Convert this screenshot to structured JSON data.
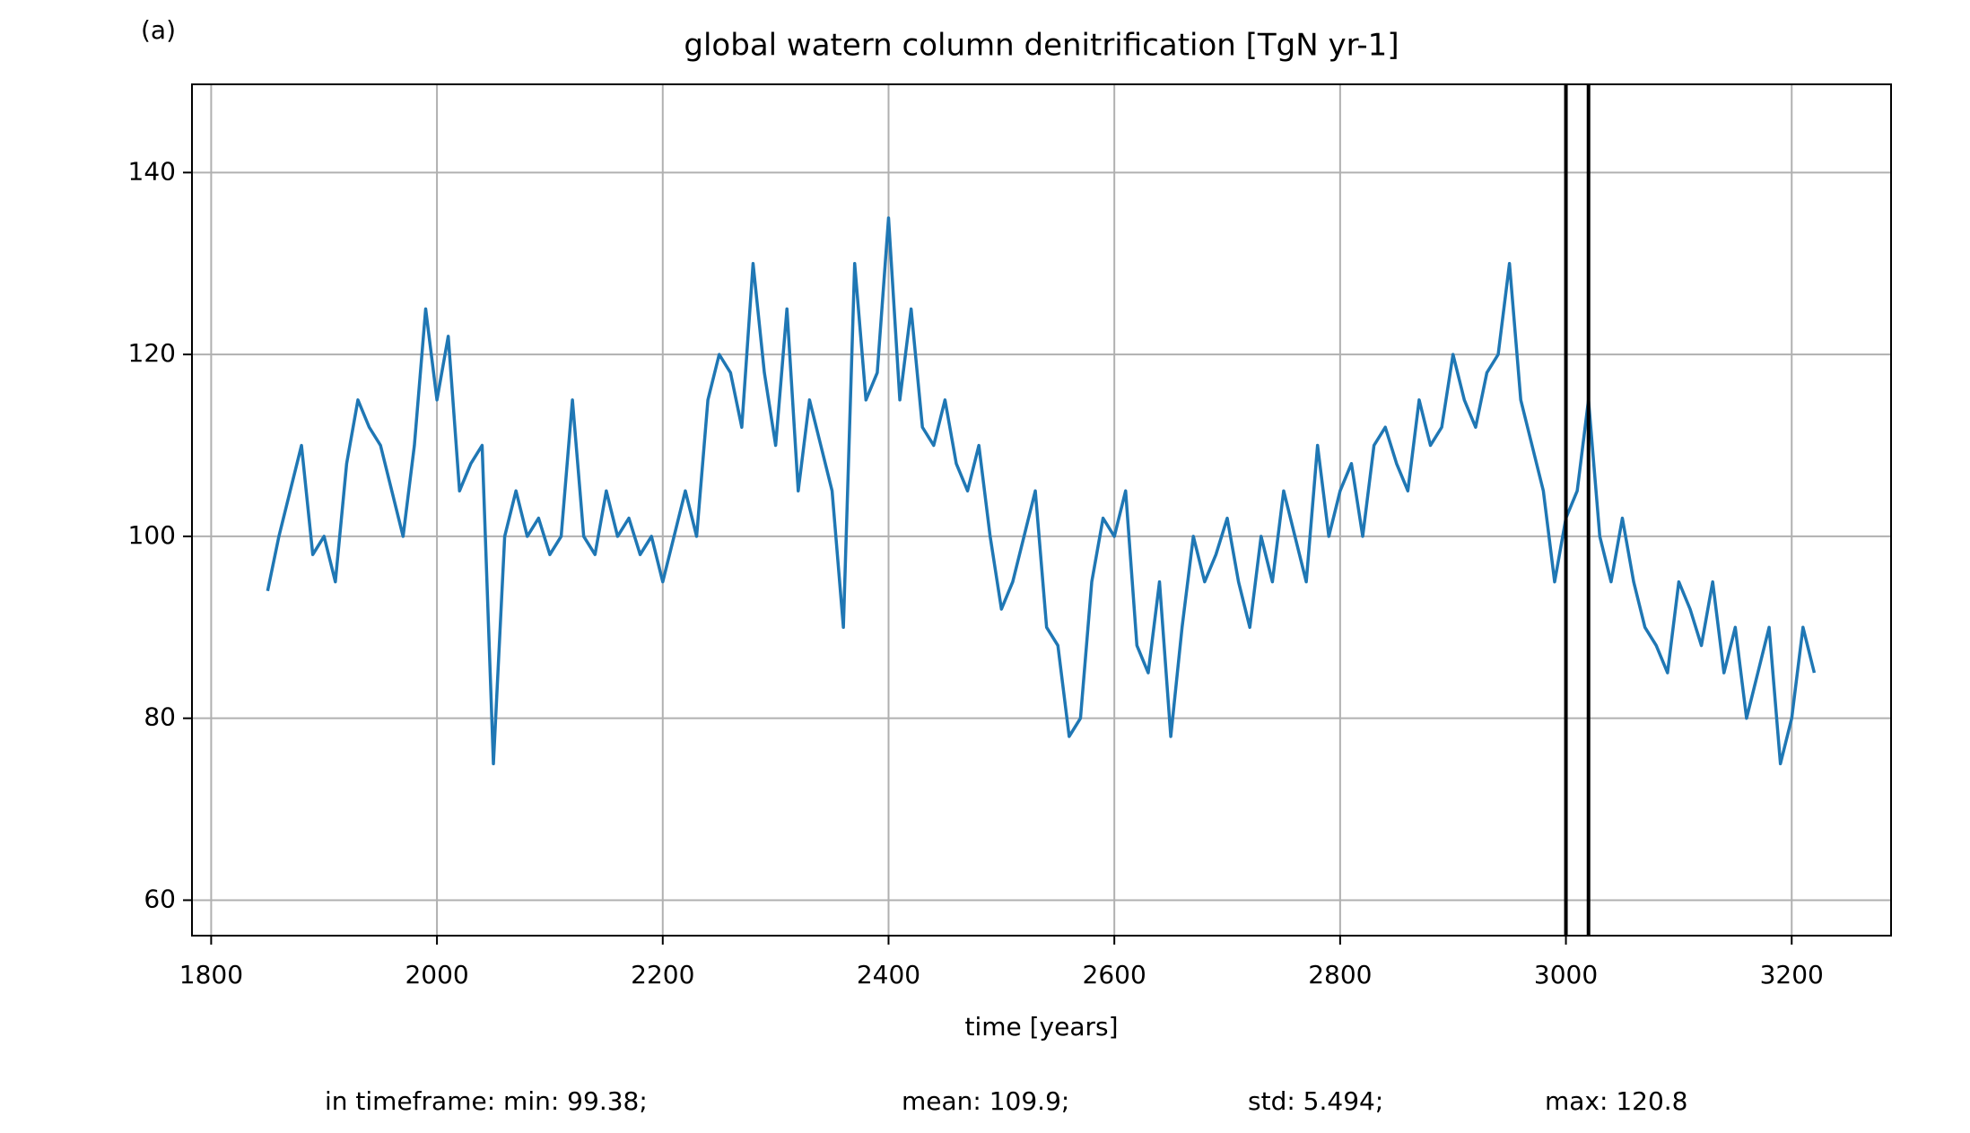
{
  "chart_data": {
    "type": "line",
    "title": "global watern column denitrification [TgN yr-1]",
    "panel_label": "(a)",
    "xlabel": "time [years]",
    "footer": [
      "in timeframe: min: 99.38;",
      "mean: 109.9;",
      "std: 5.494;",
      "max: 120.8"
    ],
    "x": [
      1850,
      1860,
      1870,
      1880,
      1890,
      1900,
      1910,
      1920,
      1930,
      1940,
      1950,
      1960,
      1970,
      1980,
      1990,
      2000,
      2010,
      2020,
      2030,
      2040,
      2050,
      2060,
      2070,
      2080,
      2090,
      2100,
      2110,
      2120,
      2130,
      2140,
      2150,
      2160,
      2170,
      2180,
      2190,
      2200,
      2210,
      2220,
      2230,
      2240,
      2250,
      2260,
      2270,
      2280,
      2290,
      2300,
      2310,
      2320,
      2330,
      2340,
      2350,
      2360,
      2370,
      2380,
      2390,
      2400,
      2410,
      2420,
      2430,
      2440,
      2450,
      2460,
      2470,
      2480,
      2490,
      2500,
      2510,
      2520,
      2530,
      2540,
      2550,
      2560,
      2570,
      2580,
      2590,
      2600,
      2610,
      2620,
      2630,
      2640,
      2650,
      2660,
      2670,
      2680,
      2690,
      2700,
      2710,
      2720,
      2730,
      2740,
      2750,
      2760,
      2770,
      2780,
      2790,
      2800,
      2810,
      2820,
      2830,
      2840,
      2850,
      2860,
      2870,
      2880,
      2890,
      2900,
      2910,
      2920,
      2930,
      2940,
      2950,
      2960,
      2970,
      2980,
      2990,
      3000,
      3010,
      3020,
      3030,
      3040,
      3050,
      3060,
      3070,
      3080,
      3090,
      3100,
      3110,
      3120,
      3130,
      3140,
      3150,
      3160,
      3170,
      3180,
      3190,
      3200,
      3210,
      3220
    ],
    "series": [
      {
        "name": "denitrification",
        "color": "#1f77b4",
        "values": [
          94,
          100,
          105,
          110,
          98,
          100,
          95,
          108,
          115,
          112,
          110,
          105,
          100,
          110,
          125,
          115,
          122,
          105,
          108,
          110,
          75,
          100,
          105,
          100,
          102,
          98,
          100,
          115,
          100,
          98,
          105,
          100,
          102,
          98,
          100,
          95,
          100,
          105,
          100,
          115,
          120,
          118,
          112,
          130,
          118,
          110,
          125,
          105,
          115,
          110,
          105,
          90,
          130,
          115,
          118,
          135,
          115,
          125,
          112,
          110,
          115,
          108,
          105,
          110,
          100,
          92,
          95,
          100,
          105,
          90,
          88,
          78,
          80,
          95,
          102,
          100,
          105,
          88,
          85,
          95,
          78,
          90,
          100,
          95,
          98,
          102,
          95,
          90,
          100,
          95,
          105,
          100,
          95,
          110,
          100,
          105,
          108,
          100,
          110,
          112,
          108,
          105,
          115,
          110,
          112,
          120,
          115,
          112,
          118,
          120,
          130,
          115,
          110,
          105,
          95,
          102,
          105,
          115,
          100,
          95,
          102,
          95,
          90,
          88,
          85,
          95,
          92,
          88,
          95,
          85,
          90,
          80,
          85,
          90,
          75,
          80,
          90,
          85
        ]
      }
    ],
    "vlines": [
      3000,
      3020
    ],
    "vline_color": "#000000",
    "xlim": [
      1783,
      3288
    ],
    "ylim": [
      56.1,
      149.7
    ],
    "xticks": [
      1800,
      2000,
      2200,
      2400,
      2600,
      2800,
      3000,
      3200
    ],
    "yticks": [
      60,
      80,
      100,
      120,
      140
    ],
    "grid": true
  }
}
